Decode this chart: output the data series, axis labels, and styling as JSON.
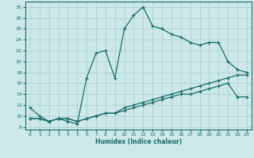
{
  "xlabel": "Humidex (Indice chaleur)",
  "xlim": [
    -0.5,
    23.5
  ],
  "ylim": [
    7.5,
    31
  ],
  "yticks": [
    8,
    10,
    12,
    14,
    16,
    18,
    20,
    22,
    24,
    26,
    28,
    30
  ],
  "xticks": [
    0,
    1,
    2,
    3,
    4,
    5,
    6,
    7,
    8,
    9,
    10,
    11,
    12,
    13,
    14,
    15,
    16,
    17,
    18,
    19,
    20,
    21,
    22,
    23
  ],
  "bg_color": "#cde8e8",
  "grid_color": "#b0d4d4",
  "line_color": "#1a6b6b",
  "line1": [
    11.5,
    10.0,
    9.0,
    9.5,
    9.0,
    8.5,
    17.0,
    21.5,
    22.0,
    17.0,
    26.0,
    28.5,
    30.0,
    26.5,
    26.0,
    25.0,
    24.5,
    23.5,
    23.0,
    23.5,
    23.5,
    20.0,
    18.5,
    18.0
  ],
  "line2": [
    9.5,
    9.5,
    9.0,
    9.5,
    9.5,
    9.0,
    9.5,
    10.0,
    10.5,
    10.5,
    11.5,
    12.0,
    12.5,
    13.0,
    13.5,
    14.0,
    14.5,
    15.0,
    15.5,
    16.0,
    16.5,
    17.0,
    17.5,
    17.5
  ],
  "line3": [
    9.5,
    9.5,
    9.0,
    9.5,
    9.5,
    9.0,
    9.5,
    10.0,
    10.5,
    10.5,
    11.0,
    11.5,
    12.0,
    12.5,
    13.0,
    13.5,
    14.0,
    14.0,
    14.5,
    15.0,
    15.5,
    16.0,
    13.5,
    13.5
  ]
}
